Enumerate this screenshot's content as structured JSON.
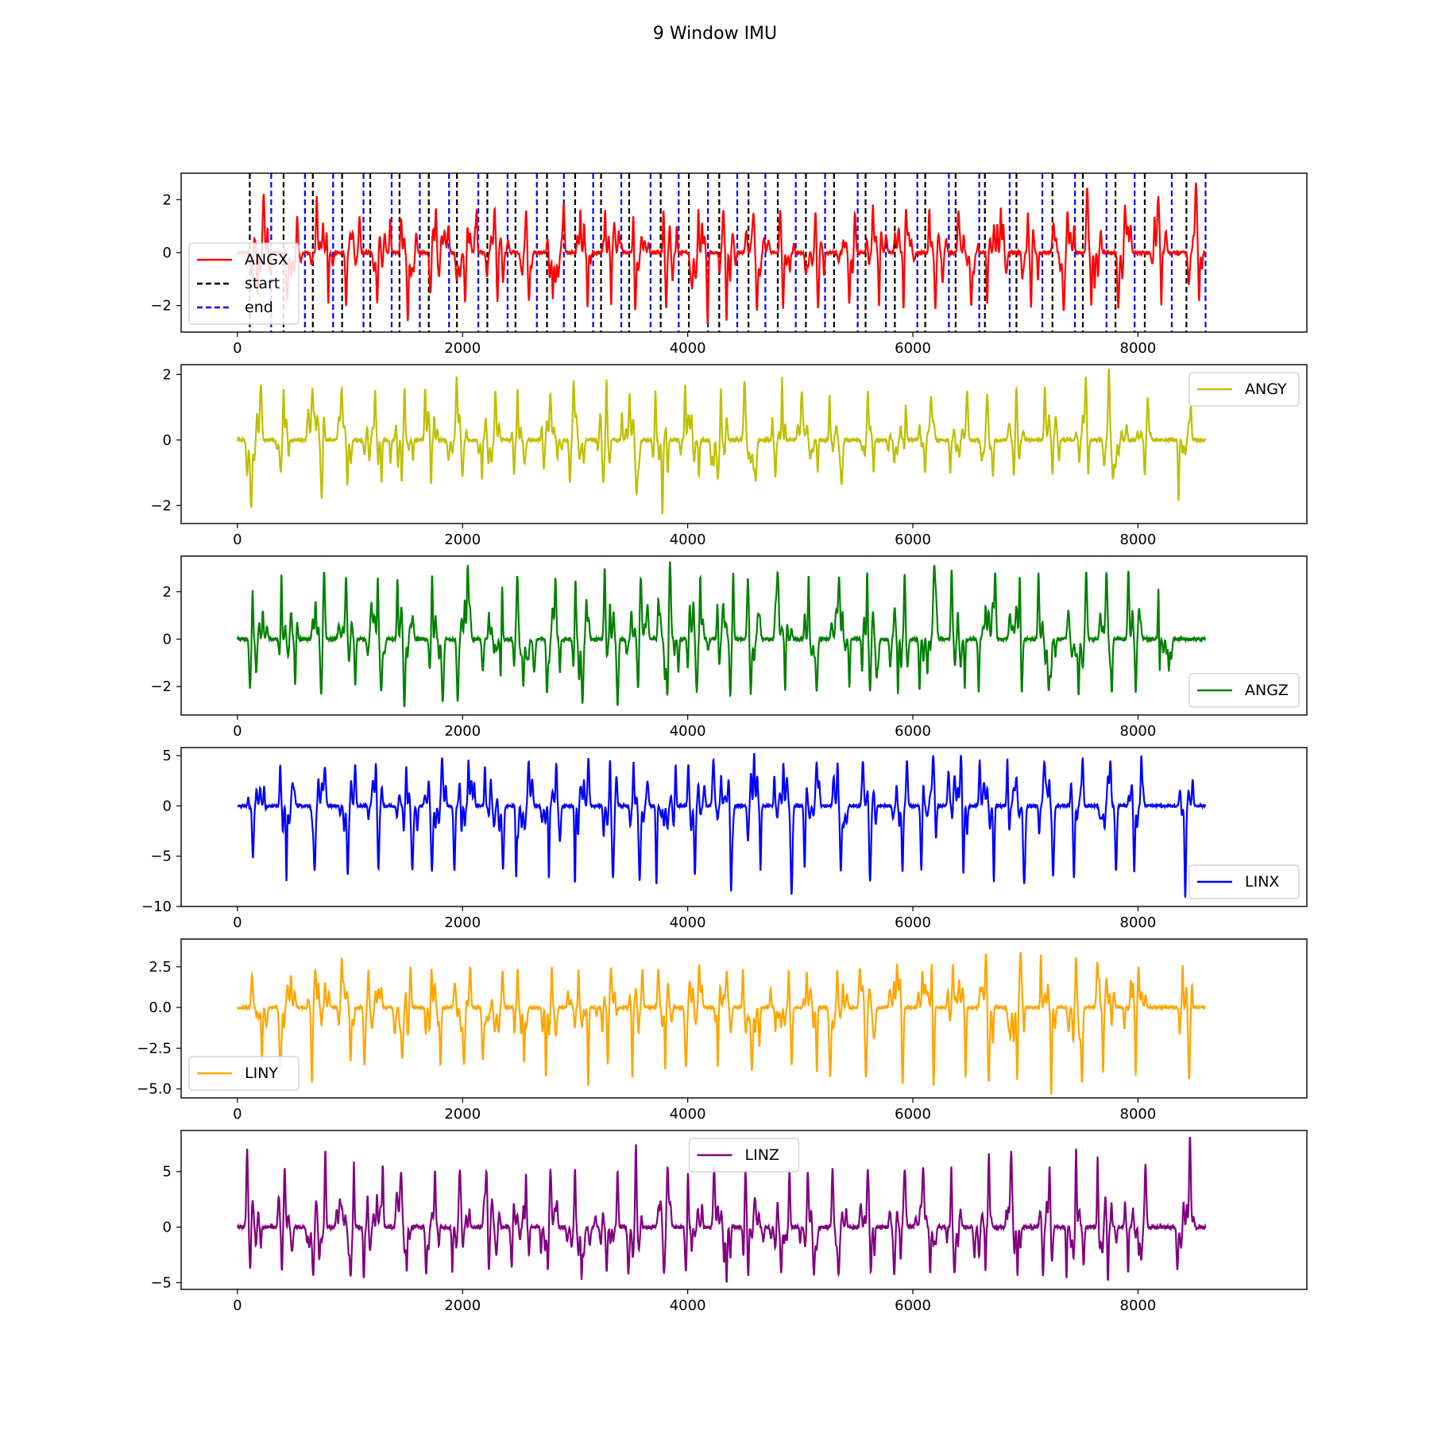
{
  "figure": {
    "title": "9 Window IMU"
  },
  "chart_data": [
    {
      "type": "line",
      "name": "ANGX",
      "color": "#ff0000",
      "legend_loc": "lower-left",
      "xlim": [
        -500,
        9500
      ],
      "ylim": [
        -3.0,
        3.0
      ],
      "xticks": [
        0,
        2000,
        4000,
        6000,
        8000
      ],
      "yticks": [
        -2,
        0,
        2
      ],
      "ytick_labels": [
        "−2",
        "0",
        "2"
      ],
      "series": [
        {
          "name": "ANGX",
          "style": "solid",
          "color": "#ff0000"
        }
      ],
      "extra_legend": [
        {
          "name": "start",
          "style": "dashed",
          "color": "#000000"
        },
        {
          "name": "end",
          "style": "dashed",
          "color": "#0000ff"
        }
      ],
      "x_range": [
        0,
        8600
      ],
      "window_start_x": [
        110,
        410,
        670,
        930,
        1180,
        1440,
        1700,
        1950,
        2220,
        2470,
        2750,
        3000,
        3230,
        3480,
        3760,
        4010,
        4280,
        4540,
        4800,
        5050,
        5300,
        5580,
        5840,
        6110,
        6380,
        6640,
        6920,
        7240,
        7510,
        7800,
        8060,
        8430
      ],
      "window_end_x": [
        300,
        600,
        850,
        1120,
        1370,
        1620,
        1880,
        2140,
        2400,
        2660,
        2900,
        3160,
        3410,
        3670,
        3920,
        4180,
        4440,
        4690,
        4960,
        5220,
        5510,
        5760,
        6040,
        6320,
        6590,
        6860,
        7150,
        7440,
        7720,
        7970,
        8300,
        8600
      ],
      "peak_amplitudes": [
        2.2,
        1.4,
        2.1,
        1.4,
        1.3,
        1.3,
        1.7,
        1.6,
        1.7,
        1.6,
        1.7,
        1.6,
        1.6,
        1.7,
        1.6,
        1.7,
        1.6,
        1.4,
        1.6,
        1.6,
        1.5,
        1.8,
        1.6,
        1.7,
        1.6,
        1.7,
        1.5,
        1.6,
        2.5,
        1.8,
        2.1,
        2.7
      ],
      "trough_amplitudes": [
        -1.6,
        -1.8,
        -2.0,
        -2.0,
        -1.9,
        -2.6,
        -1.6,
        -1.9,
        -1.9,
        -1.8,
        -1.7,
        -2.1,
        -2.0,
        -2.3,
        -2.1,
        -2.7,
        -2.6,
        -2.2,
        -2.1,
        -2.1,
        -1.9,
        -2.1,
        -2.2,
        -2.1,
        -2.0,
        -1.9,
        -2.1,
        -2.2,
        -2.0,
        -2.1,
        -2.0,
        -1.9
      ]
    },
    {
      "type": "line",
      "name": "ANGY",
      "color": "#bfbf00",
      "legend_loc": "upper-right",
      "xlim": [
        -500,
        9500
      ],
      "ylim": [
        -2.55,
        2.3
      ],
      "xticks": [
        0,
        2000,
        4000,
        6000,
        8000
      ],
      "yticks": [
        -2,
        0,
        2
      ],
      "ytick_labels": [
        "−2",
        "0",
        "2"
      ],
      "series": [
        {
          "name": "ANGY",
          "style": "solid",
          "color": "#bfbf00"
        }
      ],
      "x_range": [
        0,
        8600
      ],
      "burst_x": [
        150,
        410,
        700,
        950,
        1200,
        1460,
        1720,
        1960,
        2230,
        2500,
        2780,
        3010,
        3250,
        3500,
        3760,
        4020,
        4280,
        4560,
        4810,
        5060,
        5320,
        5600,
        5860,
        6120,
        6400,
        6660,
        6920,
        7240,
        7510,
        7800,
        8060,
        8420
      ],
      "peak_amplitudes": [
        1.7,
        1.6,
        1.6,
        1.6,
        1.5,
        1.6,
        1.6,
        1.9,
        1.5,
        1.6,
        1.4,
        1.8,
        1.9,
        1.4,
        1.5,
        1.7,
        1.6,
        1.8,
        1.9,
        1.5,
        1.4,
        1.5,
        1.3,
        1.3,
        1.5,
        1.4,
        1.6,
        1.6,
        1.9,
        2.2,
        1.3,
        1.0
      ],
      "trough_amplitudes": [
        -2.1,
        -1.0,
        -1.8,
        -1.4,
        -1.3,
        -1.3,
        -1.4,
        -1.1,
        -1.2,
        -1.1,
        -1.1,
        -1.3,
        -1.3,
        -1.6,
        -2.3,
        -1.1,
        -1.2,
        -1.2,
        -1.1,
        -1.0,
        -1.3,
        -1.0,
        -1.1,
        -1.0,
        -1.0,
        -1.1,
        -1.1,
        -1.1,
        -1.1,
        -1.2,
        -1.1,
        -1.9
      ]
    },
    {
      "type": "line",
      "name": "ANGZ",
      "color": "#008000",
      "legend_loc": "lower-right",
      "xlim": [
        -500,
        9500
      ],
      "ylim": [
        -3.2,
        3.5
      ],
      "xticks": [
        0,
        2000,
        4000,
        6000,
        8000
      ],
      "yticks": [
        -2,
        0,
        2
      ],
      "ytick_labels": [
        "−2",
        "0",
        "2"
      ],
      "series": [
        {
          "name": "ANGZ",
          "style": "solid",
          "color": "#008000"
        }
      ],
      "x_range": [
        0,
        8600
      ],
      "burst_x": [
        180,
        450,
        720,
        980,
        1230,
        1500,
        1760,
        2020,
        2280,
        2540,
        2800,
        3050,
        3310,
        3560,
        3820,
        4080,
        4330,
        4590,
        4850,
        5100,
        5360,
        5620,
        5880,
        6140,
        6400,
        6660,
        6920,
        7190,
        7460,
        7720,
        7980,
        8240
      ],
      "peak_amplitudes": [
        2.1,
        2.8,
        2.9,
        2.6,
        2.6,
        2.6,
        2.8,
        3.1,
        2.6,
        2.7,
        2.6,
        2.7,
        3.0,
        2.6,
        3.3,
        2.6,
        2.8,
        2.6,
        2.8,
        2.7,
        2.6,
        2.9,
        2.8,
        2.9,
        2.9,
        2.8,
        2.9,
        2.8,
        2.9,
        2.8,
        2.9,
        2.6
      ],
      "trough_amplitudes": [
        -2.1,
        -2.0,
        -2.3,
        -2.0,
        -2.2,
        -2.9,
        -2.7,
        -2.6,
        -2.1,
        -2.0,
        -2.3,
        -2.7,
        -2.8,
        -2.1,
        -2.5,
        -2.2,
        -2.4,
        -2.3,
        -2.2,
        -2.2,
        -2.0,
        -2.2,
        -2.3,
        -2.2,
        -2.1,
        -2.2,
        -2.3,
        -2.2,
        -2.4,
        -2.1,
        -2.3,
        -2.0
      ]
    },
    {
      "type": "line",
      "name": "LINX",
      "color": "#0000ff",
      "legend_loc": "lower-right",
      "xlim": [
        -500,
        9500
      ],
      "ylim": [
        -10.0,
        5.8
      ],
      "xticks": [
        0,
        2000,
        4000,
        6000,
        8000
      ],
      "yticks": [
        -10,
        -5,
        0,
        5
      ],
      "ytick_labels": [
        "−10",
        "−5",
        "0",
        "5"
      ],
      "series": [
        {
          "name": "LINX",
          "style": "solid",
          "color": "#0000ff"
        }
      ],
      "x_range": [
        0,
        8600
      ],
      "burst_x": [
        170,
        450,
        720,
        980,
        1230,
        1500,
        1760,
        2020,
        2280,
        2540,
        2800,
        3050,
        3310,
        3560,
        3820,
        4080,
        4330,
        4590,
        4850,
        5100,
        5360,
        5620,
        5880,
        6140,
        6400,
        6660,
        6920,
        7190,
        7460,
        7720,
        7980,
        8420
      ],
      "peak_amplitudes": [
        2.5,
        4.0,
        3.9,
        4.2,
        4.3,
        4.0,
        4.8,
        4.6,
        4.0,
        4.5,
        4.2,
        4.7,
        4.6,
        4.5,
        4.5,
        4.2,
        4.6,
        5.2,
        4.4,
        4.3,
        4.3,
        4.5,
        4.5,
        5.0,
        5.1,
        4.6,
        4.8,
        4.4,
        4.6,
        4.5,
        4.8,
        2.7
      ],
      "trough_amplitudes": [
        -5.2,
        -7.6,
        -6.3,
        -6.8,
        -6.4,
        -6.3,
        -6.5,
        -6.5,
        -6.3,
        -7.1,
        -7.4,
        -7.9,
        -7.2,
        -7.4,
        -7.9,
        -7.0,
        -7.3,
        -6.4,
        -7.6,
        -6.4,
        -6.6,
        -7.5,
        -6.6,
        -6.5,
        -7.0,
        -7.5,
        -6.9,
        -7.0,
        -7.2,
        -6.5,
        -6.7,
        -9.2
      ]
    },
    {
      "type": "line",
      "name": "LINY",
      "color": "#ffa500",
      "legend_loc": "lower-left",
      "xlim": [
        -500,
        9500
      ],
      "ylim": [
        -5.55,
        4.2
      ],
      "xticks": [
        0,
        2000,
        4000,
        6000,
        8000
      ],
      "yticks": [
        -5.0,
        -2.5,
        0.0,
        2.5
      ],
      "ytick_labels": [
        "−5.0",
        "−2.5",
        "0.0",
        "2.5"
      ],
      "series": [
        {
          "name": "LINY",
          "style": "solid",
          "color": "#ffa500"
        }
      ],
      "x_range": [
        0,
        8600
      ],
      "burst_x": [
        190,
        430,
        720,
        960,
        1210,
        1480,
        1740,
        2000,
        2260,
        2520,
        2780,
        3030,
        3290,
        3540,
        3800,
        4060,
        4320,
        4570,
        4830,
        5090,
        5340,
        5600,
        5860,
        6120,
        6380,
        6650,
        6910,
        7200,
        7450,
        7720,
        7980,
        8430
      ],
      "peak_amplitudes": [
        2.1,
        2.0,
        2.3,
        2.9,
        2.3,
        2.5,
        2.4,
        2.5,
        2.2,
        2.4,
        2.5,
        2.3,
        2.4,
        2.3,
        2.3,
        2.6,
        2.2,
        2.4,
        2.3,
        2.2,
        2.3,
        2.4,
        2.7,
        3.2,
        2.6,
        3.4,
        3.4,
        3.3,
        3.1,
        2.8,
        2.5,
        2.6
      ],
      "trough_amplitudes": [
        -3.3,
        -3.4,
        -4.7,
        -3.3,
        -3.5,
        -3.2,
        -3.6,
        -3.5,
        -3.2,
        -3.4,
        -4.4,
        -4.9,
        -3.6,
        -4.3,
        -3.8,
        -3.7,
        -3.7,
        -3.9,
        -3.6,
        -4.0,
        -4.2,
        -4.3,
        -4.8,
        -5.1,
        -4.3,
        -4.6,
        -4.4,
        -5.4,
        -4.5,
        -4.1,
        -4.2,
        -4.4
      ]
    },
    {
      "type": "line",
      "name": "LINZ",
      "color": "#800080",
      "legend_loc": "upper-center",
      "xlim": [
        -500,
        9500
      ],
      "ylim": [
        -5.6,
        8.7
      ],
      "xticks": [
        0,
        2000,
        4000,
        6000,
        8000
      ],
      "yticks": [
        -5,
        0,
        5
      ],
      "ytick_labels": [
        "−5",
        "0",
        "5"
      ],
      "series": [
        {
          "name": "LINZ",
          "style": "solid",
          "color": "#800080"
        }
      ],
      "x_range": [
        0,
        8600
      ],
      "burst_x": [
        150,
        420,
        700,
        960,
        1210,
        1470,
        1730,
        1990,
        2250,
        2510,
        2770,
        3030,
        3280,
        3540,
        3790,
        4050,
        4310,
        4570,
        4830,
        5080,
        5340,
        5600,
        5860,
        6120,
        6370,
        6630,
        6890,
        7190,
        7450,
        7710,
        7980,
        8420
      ],
      "peak_amplitudes": [
        7.0,
        5.3,
        7.0,
        5.8,
        5.5,
        5.0,
        5.2,
        5.2,
        5.0,
        4.9,
        5.2,
        5.3,
        5.1,
        7.5,
        5.5,
        5.2,
        5.3,
        5.2,
        5.2,
        5.2,
        5.3,
        5.3,
        5.3,
        5.3,
        5.4,
        6.6,
        6.8,
        5.6,
        7.1,
        6.3,
        5.6,
        8.2
      ],
      "trough_amplitudes": [
        -4.0,
        -4.0,
        -4.4,
        -4.4,
        -4.7,
        -4.0,
        -4.3,
        -4.0,
        -4.1,
        -4.3,
        -4.0,
        -4.3,
        -4.0,
        -4.2,
        -4.1,
        -4.1,
        -5.0,
        -4.5,
        -4.2,
        -4.3,
        -4.4,
        -4.2,
        -4.2,
        -4.1,
        -4.2,
        -4.1,
        -4.5,
        -4.4,
        -4.7,
        -4.9,
        -4.1,
        -3.9
      ]
    }
  ]
}
